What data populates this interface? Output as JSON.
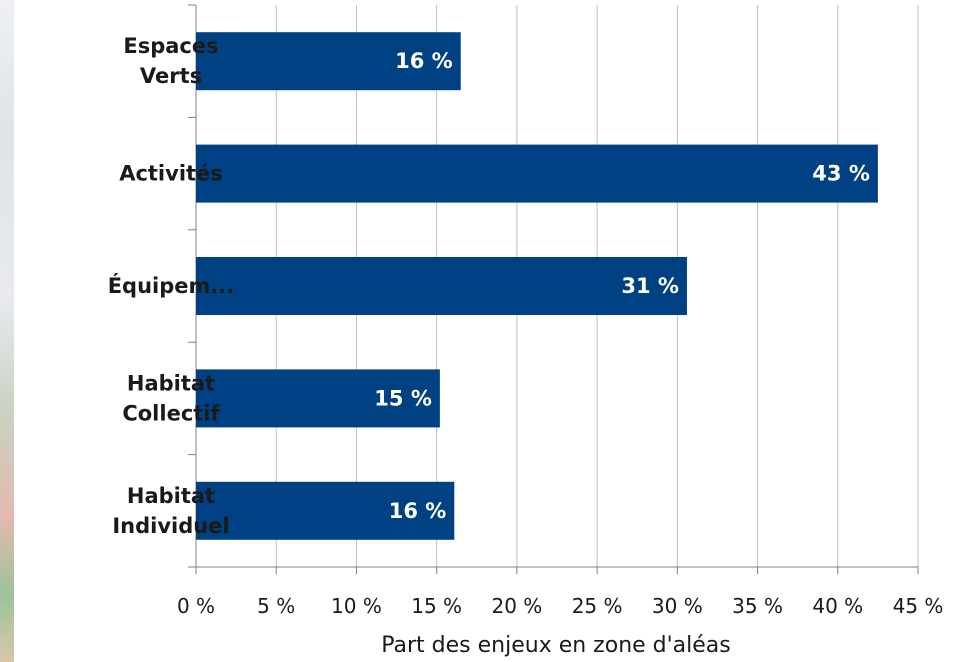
{
  "chart_data": {
    "type": "bar",
    "orientation": "horizontal",
    "categories": [
      [
        "Espaces",
        "Verts"
      ],
      [
        "Activités"
      ],
      [
        "Équipem..."
      ],
      [
        "Habitat",
        "Collectif"
      ],
      [
        "Habitat",
        "Individuel"
      ]
    ],
    "values": [
      16.5,
      42.5,
      30.6,
      15.2,
      16.1
    ],
    "value_labels": [
      "16 %",
      "43 %",
      "31 %",
      "15 %",
      "16 %"
    ],
    "xlabel": "Part des enjeux en zone d'aléas",
    "xlim": [
      0,
      45
    ],
    "xticks": [
      0,
      5,
      10,
      15,
      20,
      25,
      30,
      35,
      40,
      45
    ],
    "xtick_labels": [
      "0 %",
      "5 %",
      "10 %",
      "15 %",
      "20 %",
      "25 %",
      "30 %",
      "35 %",
      "40 %",
      "45 %"
    ],
    "grid": true,
    "colors": {
      "bar": "#004184",
      "grid": "#bfbfbf",
      "axis": "#808080"
    }
  }
}
